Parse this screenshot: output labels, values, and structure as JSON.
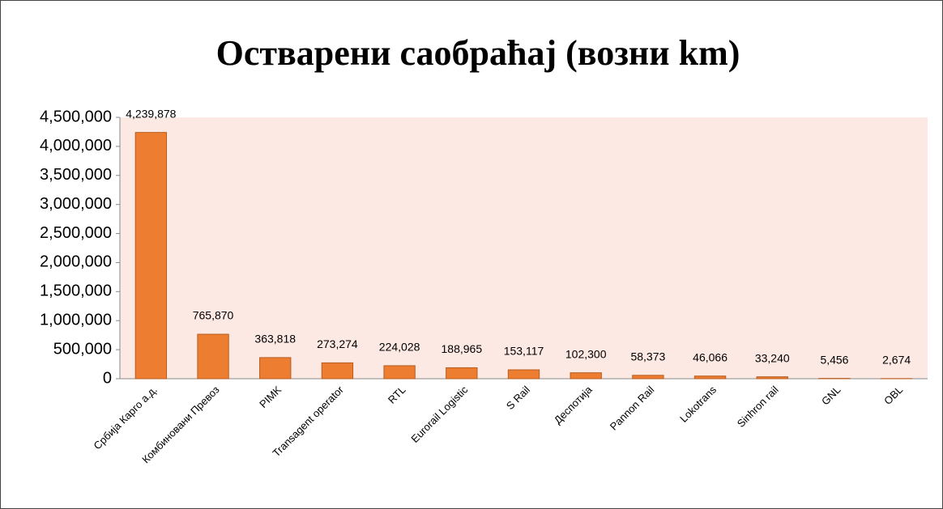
{
  "chart_data": {
    "type": "bar",
    "title": "Остварени саобраћај (возни km)",
    "categories": [
      "Србија Карго а.д.",
      "Комбиновани Превоз",
      "PIMK",
      "Transagent operator",
      "RTL",
      "Eurorail Logistic",
      "S Rail",
      "Деспотија",
      "Pannon Rail",
      "Lokotrans",
      "Sinhron rail",
      "GNL",
      "OBL"
    ],
    "values": [
      4239878,
      765870,
      363818,
      273274,
      224028,
      188965,
      153117,
      102300,
      58373,
      46066,
      33240,
      5456,
      2674
    ],
    "value_labels": [
      "4,239,878",
      "765,870",
      "363,818",
      "273,274",
      "224,028",
      "188,965",
      "153,117",
      "102,300",
      "58,373",
      "46,066",
      "33,240",
      "5,456",
      "2,674"
    ],
    "color": "#ed7d31",
    "ylim": [
      0,
      4500000
    ],
    "yticks": [
      0,
      {
        "value": 500000,
        "label": "500,000"
      },
      {
        "value": 1000000,
        "label": "1,000,000"
      },
      {
        "value": 1500000,
        "label": "1,500,000"
      },
      {
        "value": 2000000,
        "label": "2,000,000"
      },
      {
        "value": 2500000,
        "label": "2,500,000"
      },
      {
        "value": 3000000,
        "label": "3,000,000"
      },
      {
        "value": 3500000,
        "label": "3,500,000"
      },
      {
        "value": 4000000,
        "label": "4,000,000"
      },
      {
        "value": 4500000,
        "label": "4,500,000"
      }
    ]
  }
}
